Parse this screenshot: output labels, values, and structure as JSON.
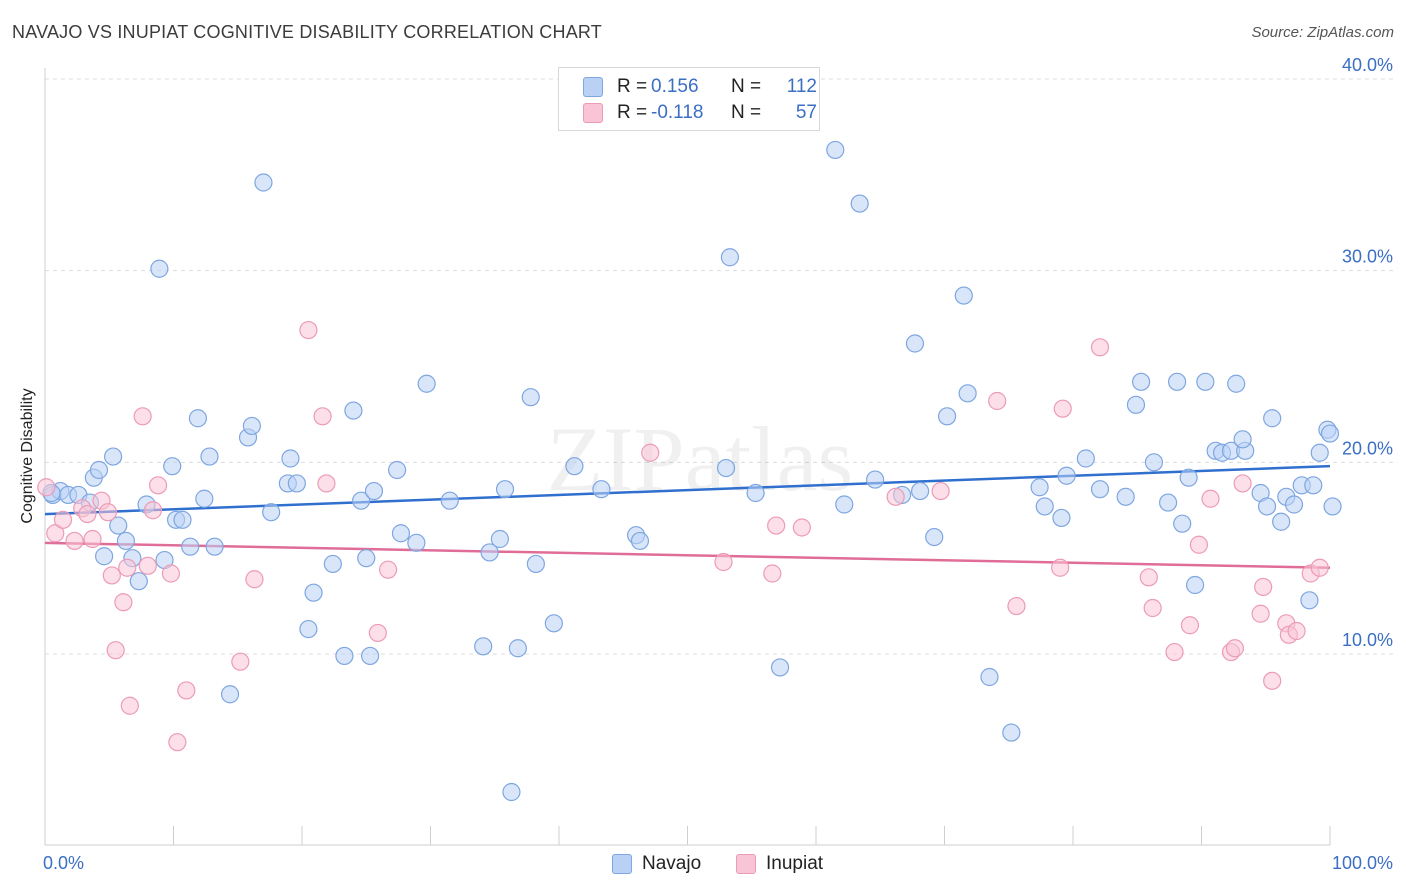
{
  "title": "NAVAJO VS INUPIAT COGNITIVE DISABILITY CORRELATION CHART",
  "source": "Source: ZipAtlas.com",
  "watermark": "ZIPatlas",
  "legend": {
    "r_label": "R =",
    "n_label": "N =",
    "series": [
      {
        "name": "Navajo",
        "r": "0.156",
        "n": "112",
        "color": "#3a6fc4"
      },
      {
        "name": "Inupiat",
        "r": "-0.118",
        "n": "57",
        "color": "#e06d97"
      }
    ]
  },
  "chart_data": {
    "type": "scatter",
    "title": "NAVAJO VS INUPIAT COGNITIVE DISABILITY CORRELATION CHART",
    "xlabel": "",
    "ylabel": "Cognitive Disability",
    "xlim": [
      0,
      100
    ],
    "ylim": [
      0,
      41
    ],
    "x_tick_labels": [
      "0.0%",
      "100.0%"
    ],
    "y_ticks": [
      10,
      20,
      30,
      40
    ],
    "y_tick_labels": [
      "10.0%",
      "20.0%",
      "30.0%",
      "40.0%"
    ],
    "grid": true,
    "series": [
      {
        "name": "Navajo",
        "point_color": "#b9d1f5",
        "edge_color": "#7ea6e0",
        "trend_color": "#2f6fce",
        "trend": [
          [
            0,
            17.3
          ],
          [
            100,
            19.8
          ]
        ],
        "points": [
          [
            0.6,
            18.3
          ],
          [
            1.2,
            18.5
          ],
          [
            1.8,
            18.3
          ],
          [
            2.6,
            18.3
          ],
          [
            3.5,
            17.9
          ],
          [
            3.8,
            19.2
          ],
          [
            4.2,
            19.6
          ],
          [
            4.6,
            15.1
          ],
          [
            5.3,
            20.3
          ],
          [
            5.7,
            16.7
          ],
          [
            6.3,
            15.9
          ],
          [
            6.8,
            15.0
          ],
          [
            7.3,
            13.8
          ],
          [
            7.9,
            17.8
          ],
          [
            8.9,
            30.1
          ],
          [
            9.3,
            14.9
          ],
          [
            9.9,
            19.8
          ],
          [
            10.2,
            17.0
          ],
          [
            10.7,
            17.0
          ],
          [
            11.3,
            15.6
          ],
          [
            11.9,
            22.3
          ],
          [
            12.4,
            18.1
          ],
          [
            12.8,
            20.3
          ],
          [
            13.2,
            15.6
          ],
          [
            14.4,
            7.9
          ],
          [
            15.8,
            21.3
          ],
          [
            16.1,
            21.9
          ],
          [
            17.0,
            34.6
          ],
          [
            17.6,
            17.4
          ],
          [
            18.9,
            18.9
          ],
          [
            19.1,
            20.2
          ],
          [
            19.6,
            18.9
          ],
          [
            20.5,
            11.3
          ],
          [
            20.9,
            13.2
          ],
          [
            22.4,
            14.7
          ],
          [
            23.3,
            9.9
          ],
          [
            24.0,
            22.7
          ],
          [
            24.6,
            18.0
          ],
          [
            25.0,
            15.0
          ],
          [
            25.3,
            9.9
          ],
          [
            25.6,
            18.5
          ],
          [
            27.4,
            19.6
          ],
          [
            27.7,
            16.3
          ],
          [
            28.9,
            15.8
          ],
          [
            29.7,
            24.1
          ],
          [
            31.5,
            18.0
          ],
          [
            34.1,
            10.4
          ],
          [
            34.6,
            15.3
          ],
          [
            35.4,
            16.0
          ],
          [
            35.8,
            18.6
          ],
          [
            36.3,
            2.8
          ],
          [
            36.8,
            10.3
          ],
          [
            37.8,
            23.4
          ],
          [
            38.2,
            14.7
          ],
          [
            39.6,
            11.6
          ],
          [
            41.2,
            19.8
          ],
          [
            43.3,
            18.6
          ],
          [
            46.0,
            16.2
          ],
          [
            46.3,
            15.9
          ],
          [
            53.3,
            30.7
          ],
          [
            53.0,
            19.7
          ],
          [
            55.3,
            18.4
          ],
          [
            57.2,
            9.3
          ],
          [
            61.5,
            36.3
          ],
          [
            62.2,
            17.8
          ],
          [
            63.4,
            33.5
          ],
          [
            64.6,
            19.1
          ],
          [
            66.7,
            18.3
          ],
          [
            67.7,
            26.2
          ],
          [
            68.1,
            18.5
          ],
          [
            69.2,
            16.1
          ],
          [
            70.2,
            22.4
          ],
          [
            71.5,
            28.7
          ],
          [
            71.8,
            23.6
          ],
          [
            73.5,
            8.8
          ],
          [
            75.2,
            5.9
          ],
          [
            77.4,
            18.7
          ],
          [
            77.8,
            17.7
          ],
          [
            79.1,
            17.1
          ],
          [
            79.5,
            19.3
          ],
          [
            81.0,
            20.2
          ],
          [
            82.1,
            18.6
          ],
          [
            84.1,
            18.2
          ],
          [
            84.9,
            23.0
          ],
          [
            85.3,
            24.2
          ],
          [
            86.3,
            20.0
          ],
          [
            87.4,
            17.9
          ],
          [
            88.1,
            24.2
          ],
          [
            88.5,
            16.8
          ],
          [
            89.0,
            19.2
          ],
          [
            89.5,
            13.6
          ],
          [
            90.3,
            24.2
          ],
          [
            91.1,
            20.6
          ],
          [
            91.6,
            20.5
          ],
          [
            92.3,
            20.6
          ],
          [
            92.7,
            24.1
          ],
          [
            93.4,
            20.6
          ],
          [
            93.2,
            21.2
          ],
          [
            94.6,
            18.4
          ],
          [
            95.1,
            17.7
          ],
          [
            95.5,
            22.3
          ],
          [
            96.2,
            16.9
          ],
          [
            96.6,
            18.2
          ],
          [
            97.2,
            17.8
          ],
          [
            97.8,
            18.8
          ],
          [
            98.4,
            12.8
          ],
          [
            98.7,
            18.8
          ],
          [
            99.2,
            20.5
          ],
          [
            99.8,
            21.7
          ],
          [
            100.0,
            21.5
          ],
          [
            100.2,
            17.7
          ],
          [
            0.5,
            18.4
          ]
        ]
      },
      {
        "name": "Inupiat",
        "point_color": "#f9c4d5",
        "edge_color": "#ec9bb6",
        "trend_color": "#e06d97",
        "trend": [
          [
            0,
            15.8
          ],
          [
            100,
            14.5
          ]
        ],
        "points": [
          [
            0.1,
            18.7
          ],
          [
            0.8,
            16.3
          ],
          [
            1.4,
            17.0
          ],
          [
            2.3,
            15.9
          ],
          [
            2.9,
            17.6
          ],
          [
            3.3,
            17.3
          ],
          [
            3.7,
            16.0
          ],
          [
            4.4,
            18.0
          ],
          [
            4.9,
            17.4
          ],
          [
            5.2,
            14.1
          ],
          [
            5.5,
            10.2
          ],
          [
            6.1,
            12.7
          ],
          [
            6.4,
            14.5
          ],
          [
            6.6,
            7.3
          ],
          [
            7.6,
            22.4
          ],
          [
            8.0,
            14.6
          ],
          [
            8.4,
            17.5
          ],
          [
            8.8,
            18.8
          ],
          [
            9.8,
            14.2
          ],
          [
            10.3,
            5.4
          ],
          [
            11.0,
            8.1
          ],
          [
            15.2,
            9.6
          ],
          [
            16.3,
            13.9
          ],
          [
            20.5,
            26.9
          ],
          [
            21.6,
            22.4
          ],
          [
            21.9,
            18.9
          ],
          [
            25.9,
            11.1
          ],
          [
            26.7,
            14.4
          ],
          [
            47.1,
            20.5
          ],
          [
            52.8,
            14.8
          ],
          [
            56.6,
            14.2
          ],
          [
            56.9,
            16.7
          ],
          [
            58.9,
            16.6
          ],
          [
            66.2,
            18.2
          ],
          [
            69.7,
            18.5
          ],
          [
            74.1,
            23.2
          ],
          [
            75.6,
            12.5
          ],
          [
            79.0,
            14.5
          ],
          [
            79.2,
            22.8
          ],
          [
            82.1,
            26.0
          ],
          [
            85.9,
            14.0
          ],
          [
            86.2,
            12.4
          ],
          [
            87.9,
            10.1
          ],
          [
            89.1,
            11.5
          ],
          [
            89.8,
            15.7
          ],
          [
            90.7,
            18.1
          ],
          [
            92.3,
            10.1
          ],
          [
            92.6,
            10.3
          ],
          [
            93.2,
            18.9
          ],
          [
            94.6,
            12.1
          ],
          [
            94.8,
            13.5
          ],
          [
            95.5,
            8.6
          ],
          [
            96.6,
            11.6
          ],
          [
            96.8,
            11.0
          ],
          [
            97.4,
            11.2
          ],
          [
            98.5,
            14.2
          ],
          [
            99.2,
            14.5
          ]
        ]
      }
    ]
  }
}
